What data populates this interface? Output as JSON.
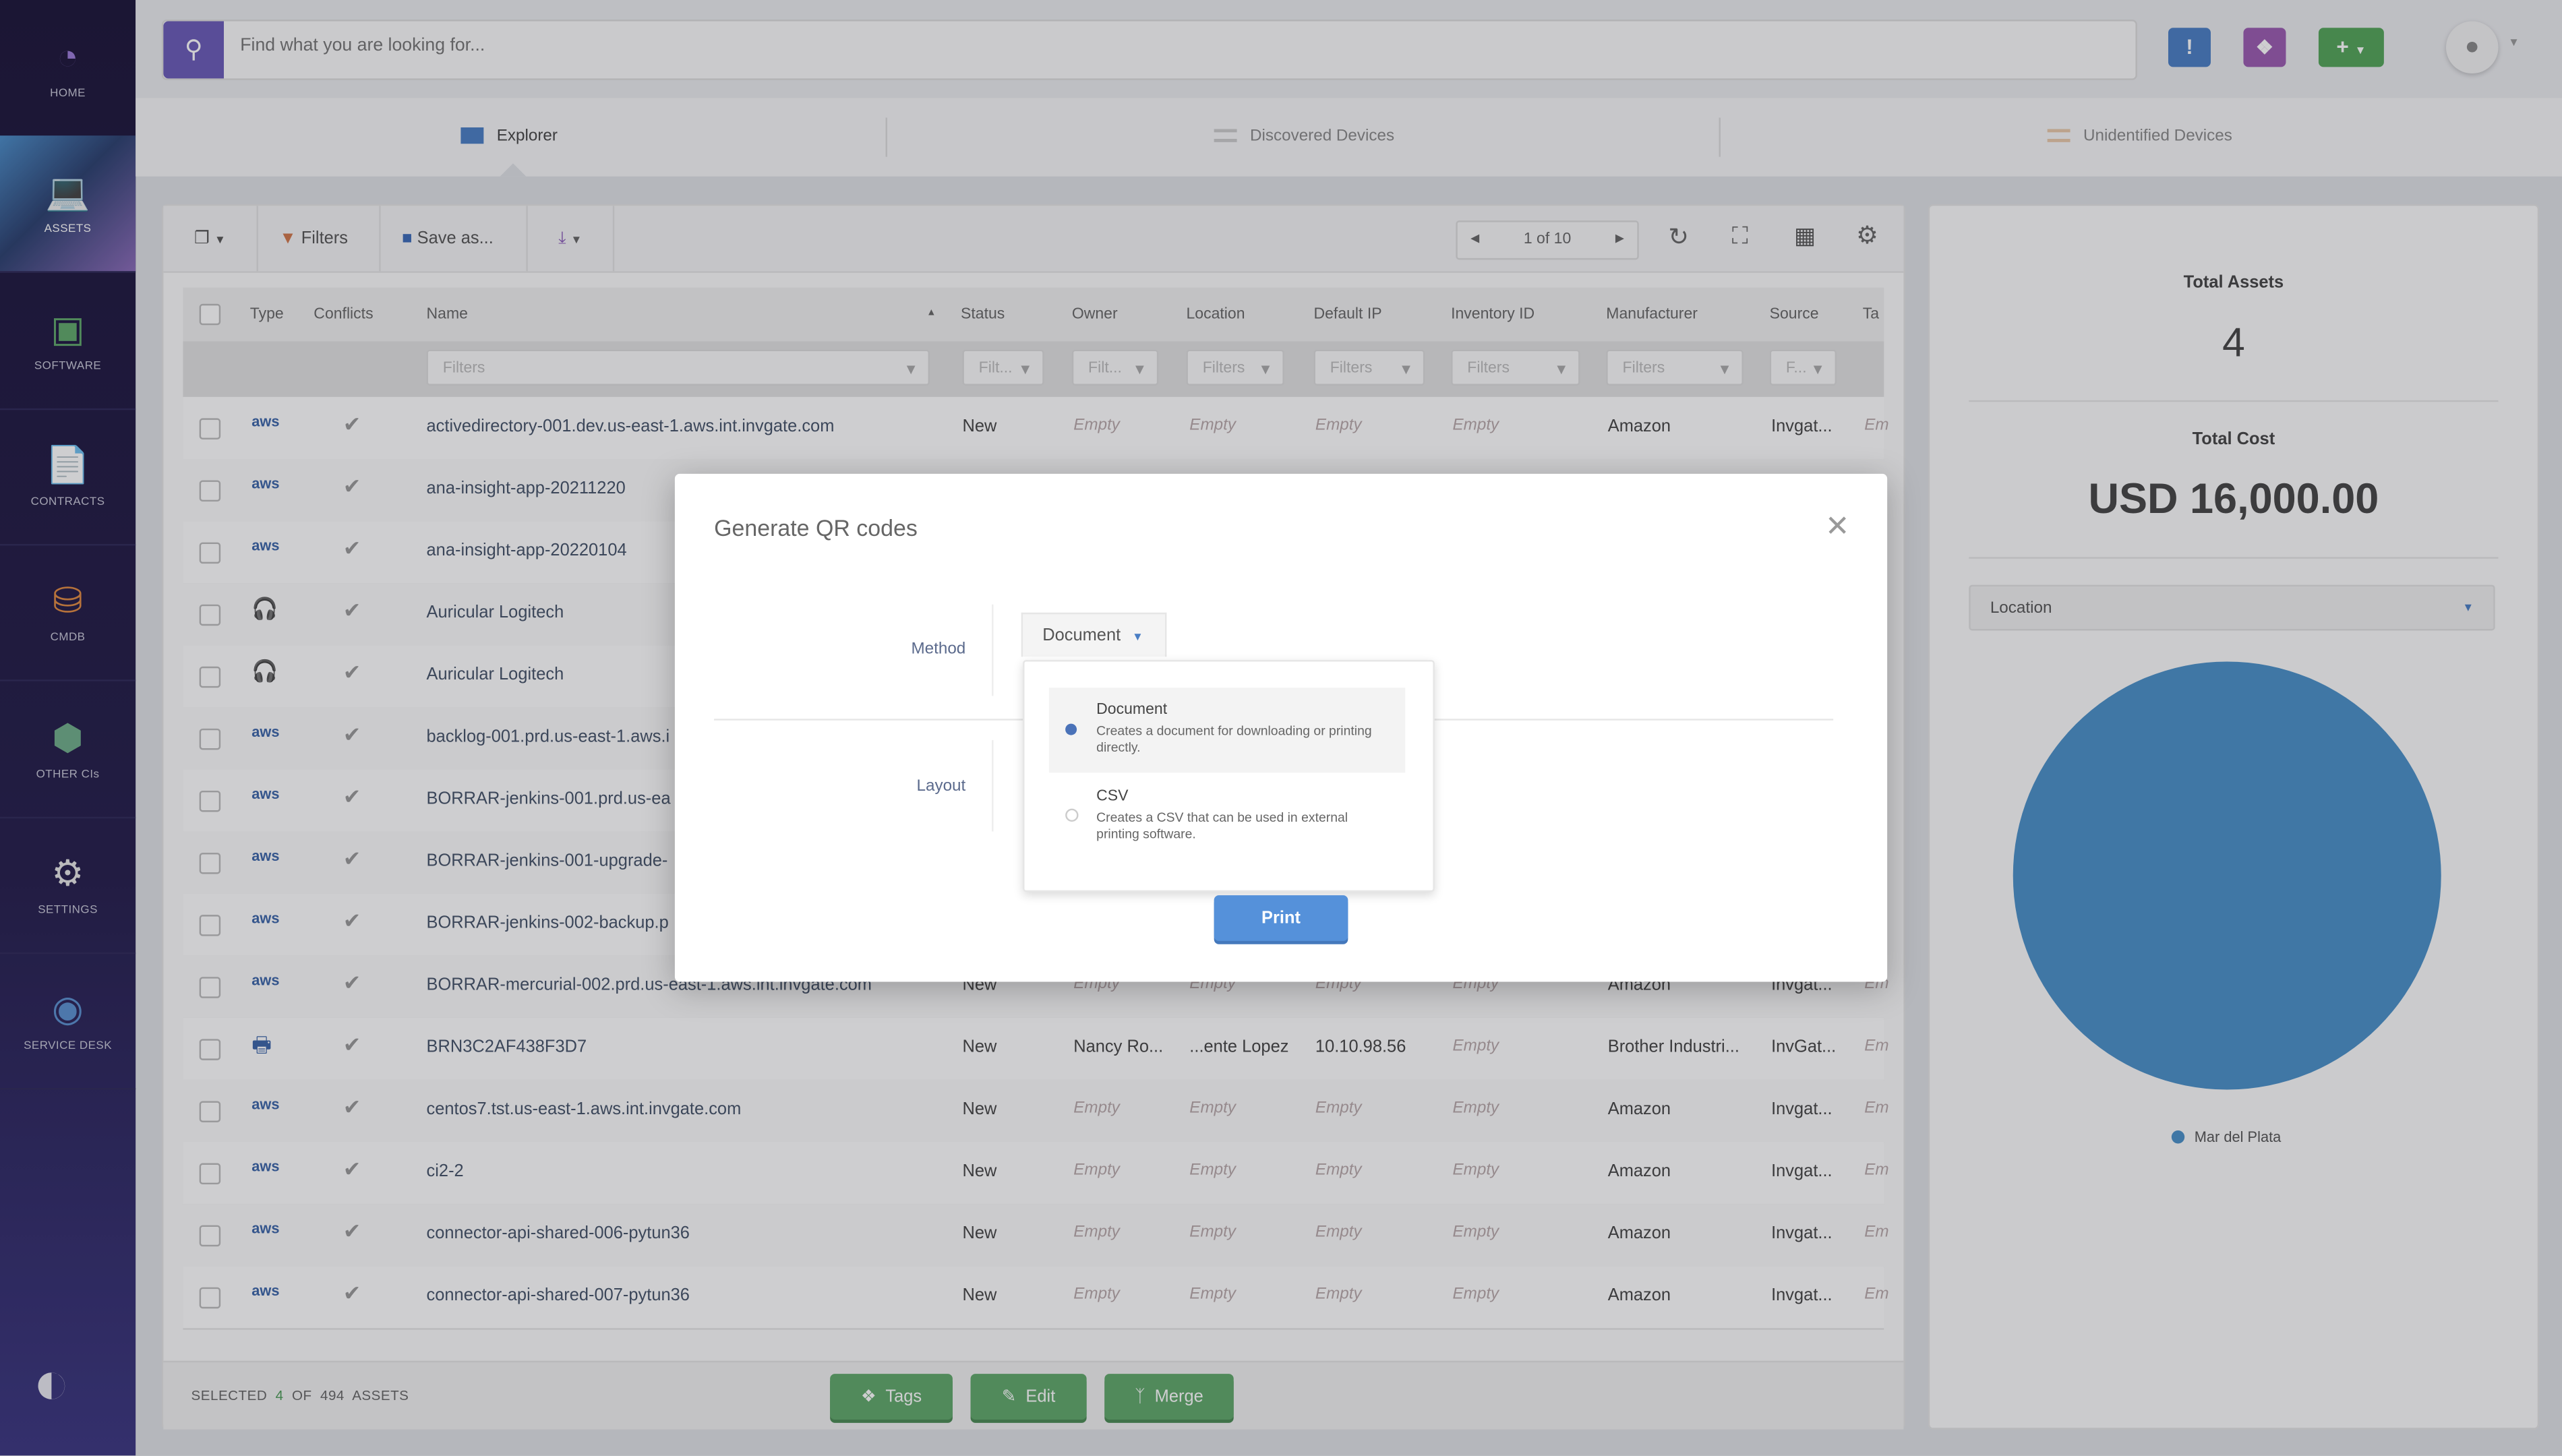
{
  "sidebar": {
    "items": [
      {
        "label": "HOME",
        "icon": "gauge-icon"
      },
      {
        "label": "ASSETS",
        "icon": "laptop-icon",
        "active": true
      },
      {
        "label": "SOFTWARE",
        "icon": "software-icon"
      },
      {
        "label": "CONTRACTS",
        "icon": "contract-icon"
      },
      {
        "label": "CMDB",
        "icon": "database-icon"
      },
      {
        "label": "OTHER CIs",
        "icon": "boxes-icon"
      },
      {
        "label": "SETTINGS",
        "icon": "gears-icon"
      },
      {
        "label": "SERVICE DESK",
        "icon": "service-desk-icon"
      }
    ]
  },
  "search": {
    "placeholder": "Find what you are looking for..."
  },
  "header_buttons": {
    "colors": {
      "alert": "#4a7ec4",
      "tags": "#9a5ab0",
      "add": "#52a458"
    }
  },
  "tabs": [
    {
      "label": "Explorer",
      "active": true
    },
    {
      "label": "Discovered Devices"
    },
    {
      "label": "Unidentified Devices"
    }
  ],
  "toolbar": {
    "filters": "Filters",
    "save_as": "Save as...",
    "pagination": "1 of 10"
  },
  "table": {
    "columns": [
      "Type",
      "Conflicts",
      "Name",
      "Status",
      "Owner",
      "Location",
      "Default IP",
      "Inventory ID",
      "Manufacturer",
      "Source",
      "Ta"
    ],
    "filter_placeholders": {
      "name": "Filters",
      "status": "Filt...",
      "owner": "Filt...",
      "location": "Filters",
      "ip": "Filters",
      "inventory": "Filters",
      "manufacturer": "Filters",
      "source": "F..."
    },
    "rows": [
      {
        "type": "aws",
        "name": "activedirectory-001.dev.us-east-1.aws.int.invgate.com",
        "status": "New",
        "owner": "Empty",
        "location": "Empty",
        "ip": "Empty",
        "inventory": "Empty",
        "manufacturer": "Amazon",
        "source": "Invgat...",
        "tags": "Em"
      },
      {
        "type": "aws",
        "name": "ana-insight-app-20211220"
      },
      {
        "type": "aws",
        "name": "ana-insight-app-20220104"
      },
      {
        "type": "headset",
        "name": "Auricular Logitech"
      },
      {
        "type": "headset",
        "name": "Auricular Logitech"
      },
      {
        "type": "aws",
        "name": "backlog-001.prd.us-east-1.aws.i"
      },
      {
        "type": "aws",
        "name": "BORRAR-jenkins-001.prd.us-ea"
      },
      {
        "type": "aws",
        "name": "BORRAR-jenkins-001-upgrade-"
      },
      {
        "type": "aws",
        "name": "BORRAR-jenkins-002-backup.p"
      },
      {
        "type": "aws",
        "name": "BORRAR-mercurial-002.prd.us-east-1.aws.int.invgate.com",
        "status": "New",
        "owner": "Empty",
        "location": "Empty",
        "ip": "Empty",
        "inventory": "Empty",
        "manufacturer": "Amazon",
        "source": "Invgat...",
        "tags": "Em"
      },
      {
        "type": "printer",
        "name": "BRN3C2AF438F3D7",
        "status": "New",
        "owner": "Nancy Ro...",
        "location": "...ente Lopez",
        "ip": "10.10.98.56",
        "inventory": "Empty",
        "manufacturer": "Brother Industri...",
        "source": "InvGat...",
        "tags": "Em"
      },
      {
        "type": "aws",
        "name": "centos7.tst.us-east-1.aws.int.invgate.com",
        "status": "New",
        "owner": "Empty",
        "location": "Empty",
        "ip": "Empty",
        "inventory": "Empty",
        "manufacturer": "Amazon",
        "source": "Invgat...",
        "tags": "Em"
      },
      {
        "type": "aws",
        "name": "ci2-2",
        "status": "New",
        "owner": "Empty",
        "location": "Empty",
        "ip": "Empty",
        "inventory": "Empty",
        "manufacturer": "Amazon",
        "source": "Invgat...",
        "tags": "Em"
      },
      {
        "type": "aws",
        "name": "connector-api-shared-006-pytun36",
        "status": "New",
        "owner": "Empty",
        "location": "Empty",
        "ip": "Empty",
        "inventory": "Empty",
        "manufacturer": "Amazon",
        "source": "Invgat...",
        "tags": "Em"
      },
      {
        "type": "aws",
        "name": "connector-api-shared-007-pytun36",
        "status": "New",
        "owner": "Empty",
        "location": "Empty",
        "ip": "Empty",
        "inventory": "Empty",
        "manufacturer": "Amazon",
        "source": "Invgat...",
        "tags": "Em"
      }
    ]
  },
  "footer": {
    "selected_prefix": "SELECTED",
    "selected_count": "4",
    "of": "OF",
    "total": "494",
    "suffix": "ASSETS",
    "tags": "Tags",
    "edit": "Edit",
    "merge": "Merge"
  },
  "summary": {
    "total_assets_label": "Total Assets",
    "total_assets": "4",
    "total_cost_label": "Total Cost",
    "total_cost": "USD 16,000.00",
    "group_by": "Location",
    "legend": [
      {
        "label": "Mar del Plata",
        "value": 4,
        "color": "#4a90c8"
      }
    ]
  },
  "modal": {
    "title": "Generate QR codes",
    "method_label": "Method",
    "layout_label": "Layout",
    "method_value": "Document",
    "options": [
      {
        "title": "Document",
        "desc": "Creates a document for downloading or printing directly.",
        "selected": true
      },
      {
        "title": "CSV",
        "desc": "Creates a CSV that can be used in external printing software.",
        "selected": false
      }
    ],
    "print": "Print"
  }
}
